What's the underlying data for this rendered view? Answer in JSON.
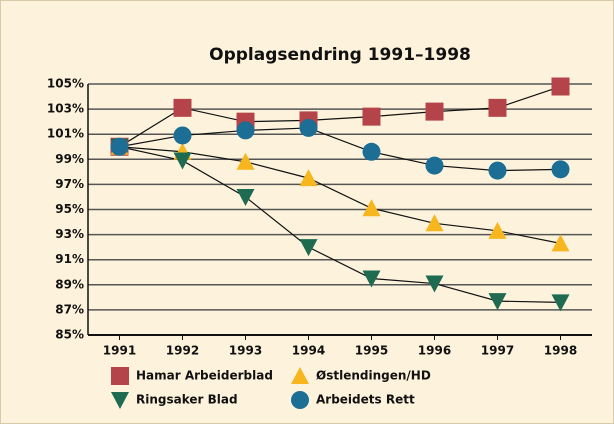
{
  "chart_data": {
    "type": "line",
    "title": "Opplagsendring 1991–1998",
    "categories": [
      "1991",
      "1992",
      "1993",
      "1994",
      "1995",
      "1996",
      "1997",
      "1998"
    ],
    "series": [
      {
        "name": "Hamar Arbeiderblad",
        "color": "#b5434a",
        "marker": "square",
        "values": [
          100,
          103.1,
          102.0,
          102.1,
          102.4,
          102.8,
          103.1,
          104.8
        ]
      },
      {
        "name": "Østlendingen/HD",
        "color": "#f7b51e",
        "marker": "triangle-up",
        "values": [
          100,
          99.6,
          98.8,
          97.5,
          95.1,
          93.9,
          93.3,
          92.3
        ]
      },
      {
        "name": "Ringsaker Blad",
        "color": "#1e6b52",
        "marker": "triangle-down",
        "values": [
          100,
          98.9,
          96.0,
          92.0,
          89.5,
          89.1,
          87.7,
          87.6
        ]
      },
      {
        "name": "Arbeidets Rett",
        "color": "#1c6e94",
        "marker": "circle",
        "values": [
          100,
          100.9,
          101.3,
          101.5,
          99.6,
          98.5,
          98.1,
          98.2
        ]
      }
    ],
    "ylim": [
      85,
      105
    ],
    "yticks": [
      {
        "value": 85,
        "label": "85%"
      },
      {
        "value": 87,
        "label": "87%"
      },
      {
        "value": 89,
        "label": "89%"
      },
      {
        "value": 91,
        "label": "91%"
      },
      {
        "value": 93,
        "label": "93%"
      },
      {
        "value": 95,
        "label": "95%"
      },
      {
        "value": 97,
        "label": "97%"
      },
      {
        "value": 99,
        "label": "99%"
      },
      {
        "value": 101,
        "label": "101%"
      },
      {
        "value": 103,
        "label": "103%"
      },
      {
        "value": 105,
        "label": "105%"
      }
    ],
    "grid": true,
    "legend": "bottom"
  }
}
